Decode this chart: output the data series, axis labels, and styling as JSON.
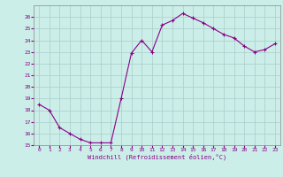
{
  "x": [
    0,
    1,
    2,
    3,
    4,
    5,
    6,
    7,
    8,
    9,
    10,
    11,
    12,
    13,
    14,
    15,
    16,
    17,
    18,
    19,
    20,
    21,
    22,
    23
  ],
  "y": [
    18.5,
    18.0,
    16.5,
    16.0,
    15.5,
    15.2,
    15.2,
    15.2,
    19.0,
    22.9,
    24.0,
    23.0,
    25.3,
    25.7,
    26.3,
    25.9,
    25.5,
    25.0,
    24.5,
    24.2,
    23.5,
    23.0,
    23.2,
    23.7
  ],
  "xlim": [
    -0.5,
    23.5
  ],
  "ylim": [
    15,
    27
  ],
  "yticks": [
    15,
    16,
    17,
    18,
    19,
    20,
    21,
    22,
    23,
    24,
    25,
    26
  ],
  "xticks": [
    0,
    1,
    2,
    3,
    4,
    5,
    6,
    7,
    8,
    9,
    10,
    11,
    12,
    13,
    14,
    15,
    16,
    17,
    18,
    19,
    20,
    21,
    22,
    23
  ],
  "xlabel": "Windchill (Refroidissement éolien,°C)",
  "line_color": "#880088",
  "marker": "+",
  "bg_color": "#cceee8",
  "grid_color": "#aacccc",
  "tick_color": "#880088",
  "label_color": "#880088"
}
